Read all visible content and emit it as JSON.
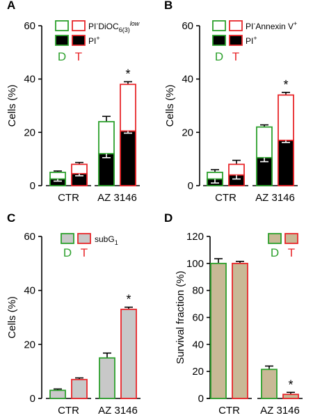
{
  "colors": {
    "D": "#2ca02c",
    "T": "#e8262a",
    "black": "#000000",
    "grey": "#c8c8c8",
    "tan": "#c8b996",
    "white": "#ffffff"
  },
  "legend_letters": {
    "D": "D",
    "T": "T"
  },
  "chart_data": [
    {
      "panel": "A",
      "type": "bar",
      "stacked": true,
      "ylabel": "Cells (%)",
      "ylim": [
        0,
        60
      ],
      "yticks": [
        "0",
        "20",
        "40",
        "60"
      ],
      "categories": [
        "CTR",
        "AZ 3146"
      ],
      "legend": {
        "top": "PI-DiOC6(3)low",
        "bottom": "PI+"
      },
      "series": [
        {
          "group": "D",
          "bottom": 2.5,
          "bottom_err": 0.8,
          "top": 5,
          "top_err": 0.5
        },
        {
          "group": "T",
          "bottom": 4.5,
          "bottom_err": 0.8,
          "top": 8,
          "top_err": 0.7
        },
        {
          "group": "D",
          "bottom": 12,
          "bottom_err": 1.5,
          "top": 24,
          "top_err": 2
        },
        {
          "group": "T",
          "bottom": 20.5,
          "bottom_err": 0.8,
          "top": 38,
          "top_err": 1
        }
      ],
      "significance": [
        "",
        "",
        "",
        "*"
      ]
    },
    {
      "panel": "B",
      "type": "bar",
      "stacked": true,
      "ylabel": "Cells (%)",
      "ylim": [
        0,
        60
      ],
      "yticks": [
        "0",
        "20",
        "40",
        "60"
      ],
      "categories": [
        "CTR",
        "AZ 3146"
      ],
      "legend": {
        "top": "PI-Annexin V+",
        "bottom": "PI+"
      },
      "series": [
        {
          "group": "D",
          "bottom": 2.5,
          "bottom_err": 1.5,
          "top": 5,
          "top_err": 1
        },
        {
          "group": "T",
          "bottom": 4,
          "bottom_err": 1.5,
          "top": 8,
          "top_err": 1.5
        },
        {
          "group": "D",
          "bottom": 10.5,
          "bottom_err": 1.5,
          "top": 22,
          "top_err": 0.8
        },
        {
          "group": "T",
          "bottom": 17,
          "bottom_err": 0.8,
          "top": 34,
          "top_err": 1
        }
      ],
      "significance": [
        "",
        "",
        "",
        "*"
      ]
    },
    {
      "panel": "C",
      "type": "bar",
      "ylabel": "Cells (%)",
      "ylim": [
        0,
        60
      ],
      "yticks": [
        "0",
        "20",
        "40",
        "60"
      ],
      "categories": [
        "CTR",
        "AZ 3146"
      ],
      "legend": {
        "label": "subG1"
      },
      "series": [
        {
          "group": "D",
          "value": 3,
          "err": 0.5
        },
        {
          "group": "T",
          "value": 7,
          "err": 0.6
        },
        {
          "group": "D",
          "value": 15,
          "err": 1.8
        },
        {
          "group": "T",
          "value": 33,
          "err": 0.8
        }
      ],
      "significance": [
        "",
        "",
        "",
        "*"
      ]
    },
    {
      "panel": "D",
      "type": "bar",
      "ylabel": "Survival fraction (%)",
      "ylim": [
        0,
        120
      ],
      "yticks": [
        "0",
        "20",
        "40",
        "60",
        "80",
        "100",
        "120"
      ],
      "categories": [
        "CTR",
        "AZ 3146"
      ],
      "series": [
        {
          "group": "D",
          "value": 100,
          "err": 3.5
        },
        {
          "group": "T",
          "value": 100,
          "err": 1.5
        },
        {
          "group": "D",
          "value": 21.5,
          "err": 2.5
        },
        {
          "group": "T",
          "value": 3,
          "err": 1.5
        }
      ],
      "significance": [
        "",
        "",
        "",
        "*"
      ]
    }
  ]
}
